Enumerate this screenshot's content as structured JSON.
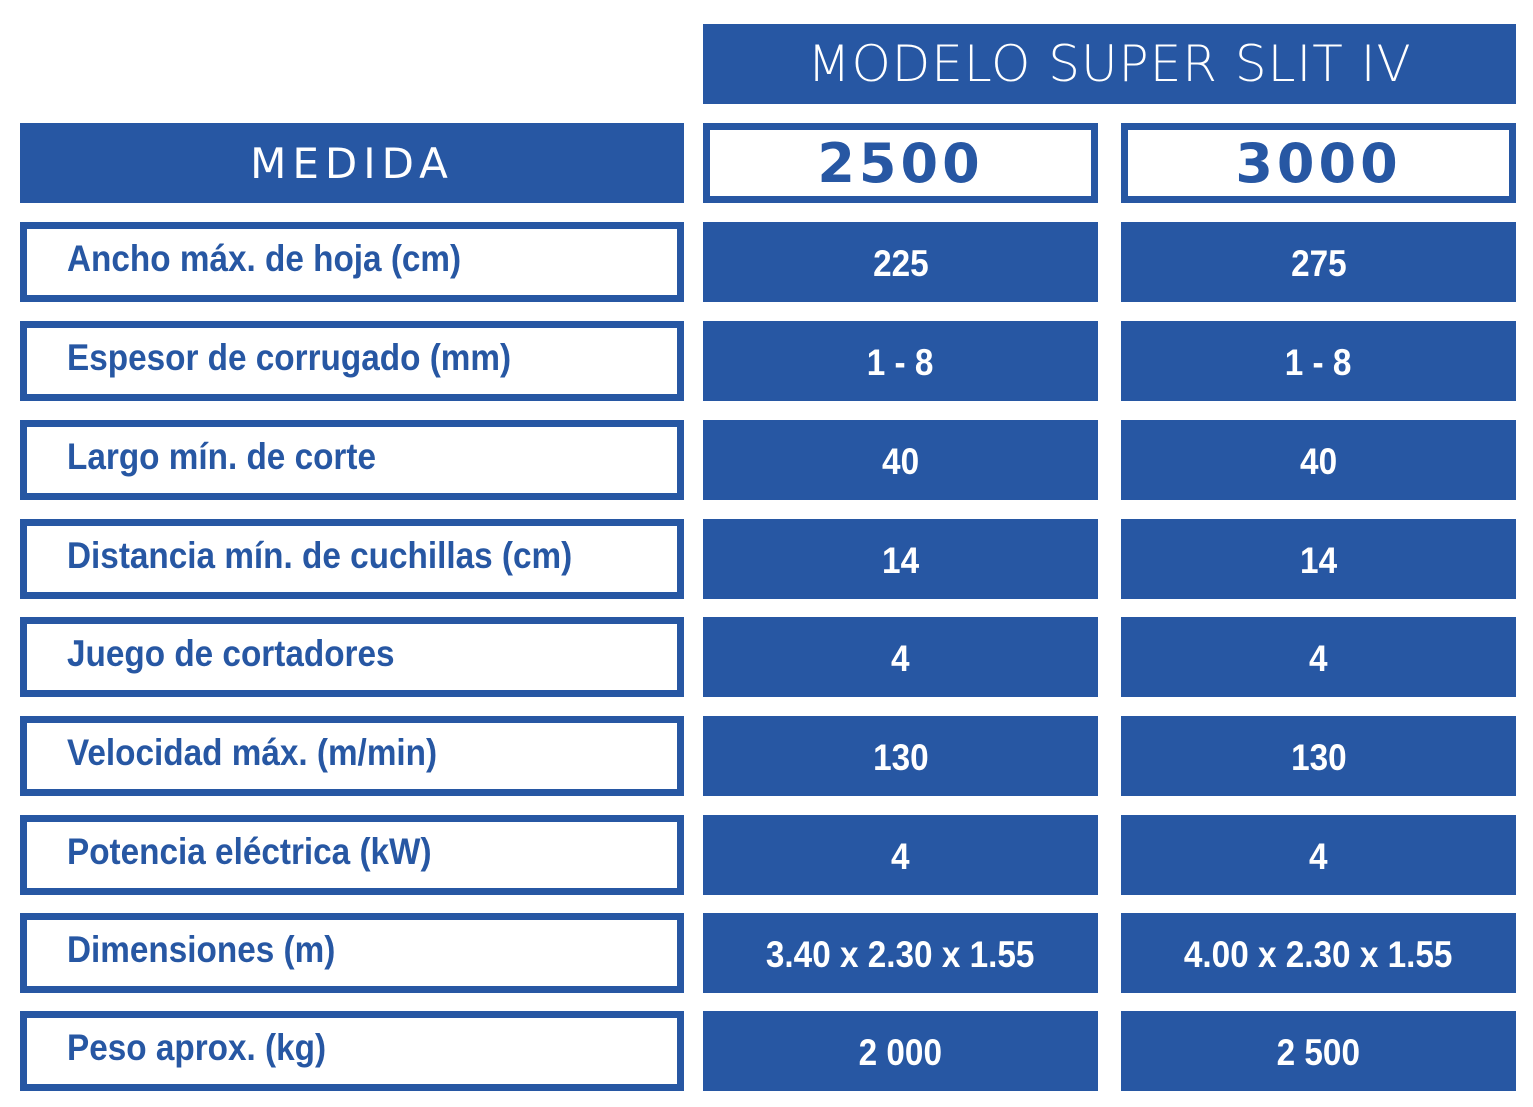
{
  "table": {
    "model_title": "MODELO SUPER SLIT IV",
    "label_header": "MEDIDA",
    "sizes": [
      "2500",
      "3000"
    ],
    "rows": [
      {
        "label": "Ancho máx. de hoja (cm)",
        "values": [
          "225",
          "275"
        ]
      },
      {
        "label": "Espesor de corrugado (mm)",
        "values": [
          "1 - 8",
          "1 - 8"
        ]
      },
      {
        "label": "Largo mín. de corte",
        "values": [
          "40",
          "40"
        ]
      },
      {
        "label": "Distancia mín. de cuchillas (cm)",
        "values": [
          "14",
          "14"
        ]
      },
      {
        "label": "Juego de cortadores",
        "values": [
          "4",
          "4"
        ]
      },
      {
        "label": "Velocidad máx. (m/min)",
        "values": [
          "130",
          "130"
        ]
      },
      {
        "label": "Potencia eléctrica (kW)",
        "values": [
          "4",
          "4"
        ]
      },
      {
        "label": "Dimensiones (m)",
        "values": [
          "3.40 x 2.30 x 1.55",
          "4.00 x 2.30 x 1.55"
        ]
      },
      {
        "label": "Peso aprox. (kg)",
        "values": [
          "2 000",
          "2 500"
        ]
      }
    ],
    "colors": {
      "primary": "#2757a3",
      "background": "#ffffff"
    }
  }
}
